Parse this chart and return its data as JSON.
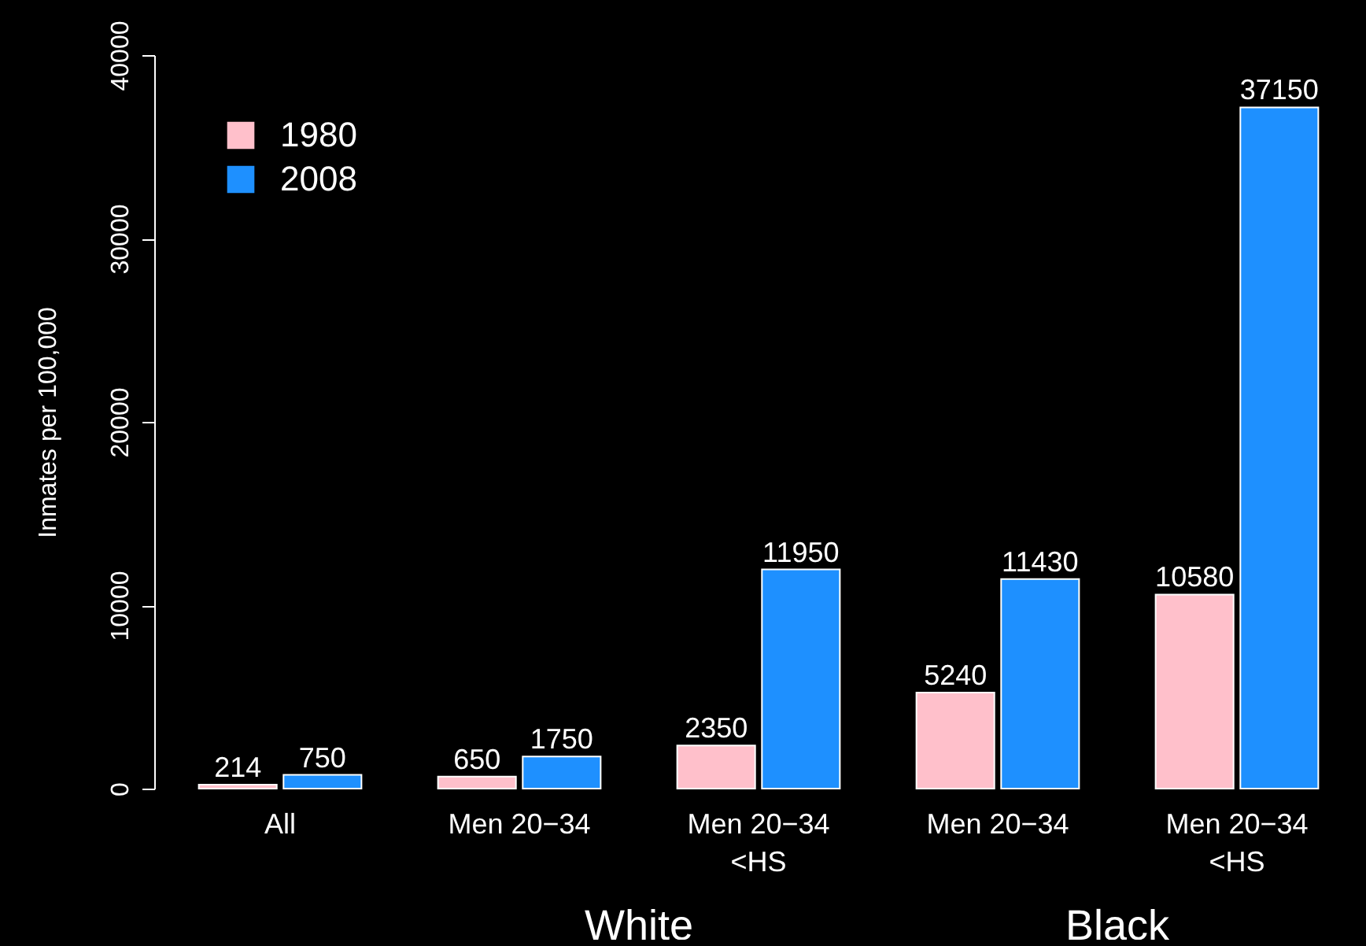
{
  "chart_data": {
    "type": "bar",
    "ylabel": "Inmates per 100,000",
    "categories": [
      "All",
      "Men 20−34",
      "Men 20−34\n<HS",
      "Men 20−34",
      "Men 20−34\n<HS"
    ],
    "series": [
      {
        "name": "1980",
        "color": "#ffc0cb",
        "values": [
          214,
          650,
          2350,
          5240,
          10580
        ]
      },
      {
        "name": "2008",
        "color": "#1e90ff",
        "values": [
          750,
          1750,
          11950,
          11430,
          37150
        ]
      }
    ],
    "ylim": [
      0,
      40000
    ],
    "yticks": [
      0,
      10000,
      20000,
      30000,
      40000
    ],
    "data_labels": true,
    "grid": false,
    "legend": "top left",
    "annotations": [
      "White",
      "Black"
    ]
  }
}
